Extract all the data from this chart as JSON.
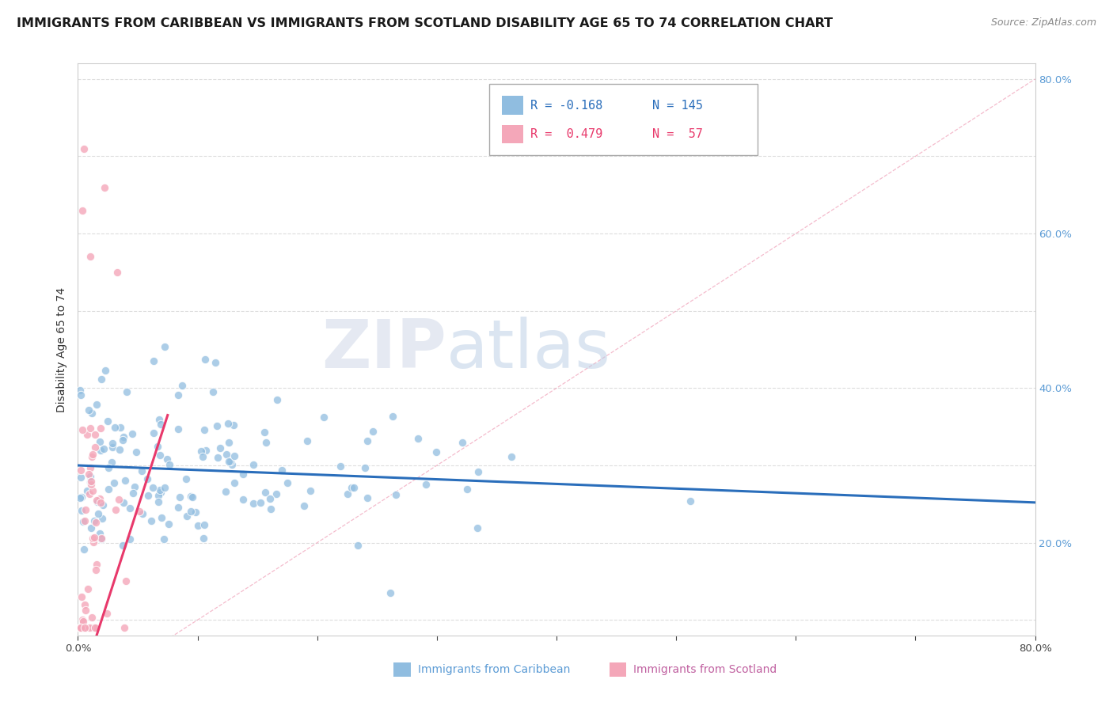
{
  "title": "IMMIGRANTS FROM CARIBBEAN VS IMMIGRANTS FROM SCOTLAND DISABILITY AGE 65 TO 74 CORRELATION CHART",
  "source_text": "Source: ZipAtlas.com",
  "ylabel": "Disability Age 65 to 74",
  "xlim": [
    0.0,
    0.8
  ],
  "ylim": [
    0.08,
    0.82
  ],
  "x_ticks": [
    0.0,
    0.1,
    0.2,
    0.3,
    0.4,
    0.5,
    0.6,
    0.7,
    0.8
  ],
  "y_ticks": [
    0.1,
    0.2,
    0.3,
    0.4,
    0.5,
    0.6,
    0.7,
    0.8
  ],
  "color_blue": "#90bde0",
  "color_pink": "#f4a7b9",
  "color_blue_line": "#2a6ebb",
  "color_pink_line": "#e8396b",
  "color_right_axis": "#5b9bd5",
  "watermark_color": "#d8e8f5",
  "watermark_color2": "#c8d8e8",
  "blue_intercept": 0.3,
  "blue_slope": -0.06,
  "pink_intercept": 0.005,
  "pink_slope": 4.8
}
